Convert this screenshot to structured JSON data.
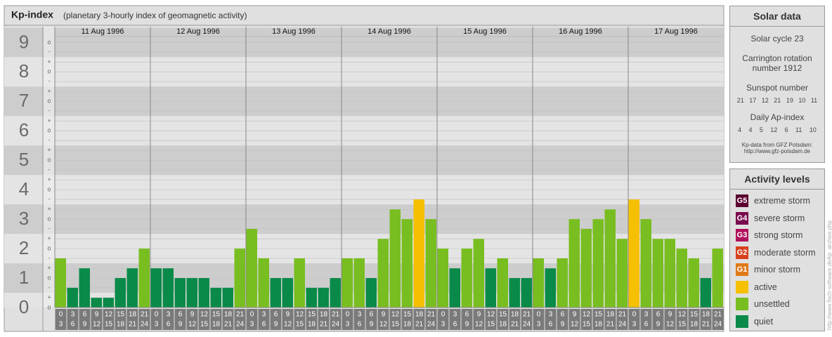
{
  "chart_data": {
    "type": "bar",
    "title": "Kp-index",
    "subtitle": "(planetary 3-hourly index of geomagnetic activity)",
    "days": [
      "11 Aug 1996",
      "12 Aug 1996",
      "13 Aug 1996",
      "14 Aug 1996",
      "15 Aug 1996",
      "16 Aug 1996",
      "17 Aug 1996"
    ],
    "intervals": [
      [
        0,
        3
      ],
      [
        3,
        6
      ],
      [
        6,
        9
      ],
      [
        9,
        12
      ],
      [
        12,
        15
      ],
      [
        15,
        18
      ],
      [
        18,
        21
      ],
      [
        21,
        24
      ]
    ],
    "values": [
      1.67,
      0.67,
      1.33,
      0.33,
      0.33,
      1,
      1.33,
      2,
      1.33,
      1.33,
      1,
      1,
      1,
      0.67,
      0.67,
      2,
      2.67,
      1.67,
      1,
      1,
      1.67,
      0.67,
      0.67,
      1,
      1.67,
      1.67,
      1,
      2.33,
      3.33,
      3,
      3.67,
      3,
      2,
      1.33,
      2,
      2.33,
      1.33,
      1.67,
      1,
      1,
      1.67,
      1.33,
      1.67,
      3,
      2.67,
      3,
      3.33,
      2.33,
      3.67,
      3,
      2.33,
      2.33,
      2,
      1.67,
      1,
      2
    ],
    "colors": [
      "#78be20",
      "#0a8a48",
      "#0a8a48",
      "#0a8a48",
      "#0a8a48",
      "#0a8a48",
      "#0a8a48",
      "#78be20",
      "#0a8a48",
      "#0a8a48",
      "#0a8a48",
      "#0a8a48",
      "#0a8a48",
      "#0a8a48",
      "#0a8a48",
      "#78be20",
      "#78be20",
      "#78be20",
      "#0a8a48",
      "#0a8a48",
      "#78be20",
      "#0a8a48",
      "#0a8a48",
      "#0a8a48",
      "#78be20",
      "#78be20",
      "#0a8a48",
      "#78be20",
      "#78be20",
      "#78be20",
      "#f5c000",
      "#78be20",
      "#78be20",
      "#0a8a48",
      "#78be20",
      "#78be20",
      "#0a8a48",
      "#78be20",
      "#0a8a48",
      "#0a8a48",
      "#78be20",
      "#0a8a48",
      "#78be20",
      "#78be20",
      "#78be20",
      "#78be20",
      "#78be20",
      "#78be20",
      "#f5c000",
      "#78be20",
      "#78be20",
      "#78be20",
      "#78be20",
      "#78be20",
      "#0a8a48",
      "#78be20"
    ],
    "ylim": [
      0,
      9.2
    ],
    "yticks": [
      0,
      1,
      2,
      3,
      4,
      5,
      6,
      7,
      8,
      9
    ],
    "minor_ticks": [
      {
        "value": 0,
        "label": "o"
      },
      {
        "value": 0.33,
        "label": "+"
      },
      {
        "value": 0.67,
        "label": "-"
      },
      {
        "value": 1,
        "label": "o"
      },
      {
        "value": 1.33,
        "label": "+"
      },
      {
        "value": 1.67,
        "label": "-"
      },
      {
        "value": 2,
        "label": "o"
      },
      {
        "value": 2.33,
        "label": "+"
      },
      {
        "value": 2.67,
        "label": "-"
      },
      {
        "value": 3,
        "label": "o"
      },
      {
        "value": 3.33,
        "label": "+"
      },
      {
        "value": 3.67,
        "label": "-"
      },
      {
        "value": 4,
        "label": "o"
      },
      {
        "value": 4.33,
        "label": "+"
      },
      {
        "value": 4.67,
        "label": "-"
      },
      {
        "value": 5,
        "label": "o"
      },
      {
        "value": 5.33,
        "label": "+"
      },
      {
        "value": 5.67,
        "label": "-"
      },
      {
        "value": 6,
        "label": "o"
      },
      {
        "value": 6.33,
        "label": "+"
      },
      {
        "value": 6.67,
        "label": "-"
      },
      {
        "value": 7,
        "label": "o"
      },
      {
        "value": 7.33,
        "label": "+"
      },
      {
        "value": 7.67,
        "label": "-"
      },
      {
        "value": 8,
        "label": "o"
      },
      {
        "value": 8.33,
        "label": "+"
      },
      {
        "value": 8.67,
        "label": "-"
      },
      {
        "value": 9,
        "label": "o"
      }
    ],
    "grid": true
  },
  "solar_data": {
    "title": "Solar data",
    "solar_cycle": "Solar cycle 23",
    "carrington": "Carrington rotation number 1912",
    "sunspot_title": "Sunspot number",
    "sunspot": [
      21,
      17,
      12,
      21,
      19,
      10,
      11
    ],
    "ap_title": "Daily Ap-index",
    "ap": [
      4,
      4,
      5,
      12,
      6,
      11,
      10
    ],
    "source": "Kp-data from GFZ Potsdam:",
    "source_url": "http://www.gfz-potsdam.de"
  },
  "activity_levels": {
    "title": "Activity levels",
    "items": [
      {
        "code": "G5",
        "label": "extreme storm",
        "color": "#5a0030"
      },
      {
        "code": "G4",
        "label": "severe storm",
        "color": "#7a0a50"
      },
      {
        "code": "G3",
        "label": "strong storm",
        "color": "#b0105c"
      },
      {
        "code": "G2",
        "label": "moderate storm",
        "color": "#d8401c"
      },
      {
        "code": "G1",
        "label": "minor storm",
        "color": "#e07a18"
      },
      {
        "label": "active",
        "color": "#f5c000"
      },
      {
        "label": "unsettled",
        "color": "#78be20"
      },
      {
        "label": "quiet",
        "color": "#0a8a48"
      }
    ]
  },
  "credit": "http://www.fisch-software.de/kp_archive.php"
}
